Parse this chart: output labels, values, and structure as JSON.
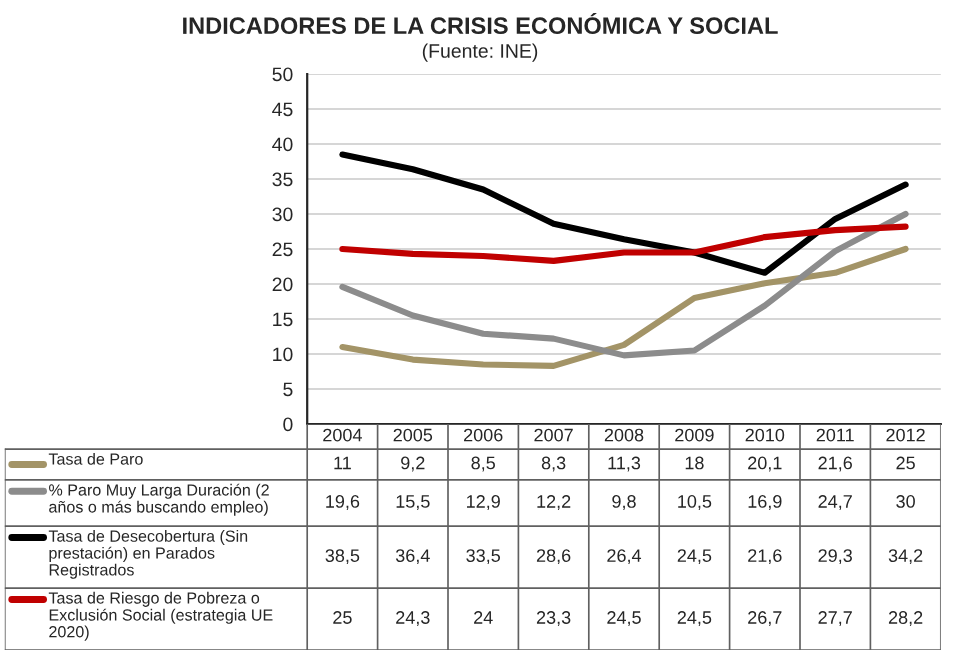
{
  "chart_data": {
    "type": "line",
    "title": "INDICADORES DE LA CRISIS ECONÓMICA Y SOCIAL",
    "subtitle": "(Fuente: INE)",
    "categories": [
      "2004",
      "2005",
      "2006",
      "2007",
      "2008",
      "2009",
      "2010",
      "2011",
      "2012"
    ],
    "ylim": [
      0,
      50
    ],
    "yticks": [
      0,
      5,
      10,
      15,
      20,
      25,
      30,
      35,
      40,
      45,
      50
    ],
    "grid": "y",
    "legend": "bottom left",
    "marker": "none",
    "line_style": "solid",
    "series": [
      {
        "name": "Tasa de Paro",
        "color": "#a39467",
        "values": [
          11,
          9.2,
          8.5,
          8.3,
          11.3,
          18,
          20.1,
          21.6,
          25
        ],
        "value_labels": [
          "11",
          "9,2",
          "8,5",
          "8,3",
          "11,3",
          "18",
          "20,1",
          "21,6",
          "25"
        ]
      },
      {
        "name": "% Paro Muy Larga Duración (2\naños o más buscando empleo)",
        "color": "#8c8c8c",
        "values": [
          19.6,
          15.5,
          12.9,
          12.2,
          9.8,
          10.5,
          16.9,
          24.7,
          30
        ],
        "value_labels": [
          "19,6",
          "15,5",
          "12,9",
          "12,2",
          "9,8",
          "10,5",
          "16,9",
          "24,7",
          "30"
        ]
      },
      {
        "name": "Tasa de Desecobertura (Sin\nprestación) en Parados\nRegistrados",
        "color": "#000000",
        "values": [
          38.5,
          36.4,
          33.5,
          28.6,
          26.4,
          24.5,
          21.6,
          29.3,
          34.2
        ],
        "value_labels": [
          "38,5",
          "36,4",
          "33,5",
          "28,6",
          "26,4",
          "24,5",
          "21,6",
          "29,3",
          "34,2"
        ]
      },
      {
        "name": "Tasa de Riesgo de Pobreza o\nExclusión Social (estrategia UE\n2020)",
        "color": "#c00000",
        "values": [
          25,
          24.3,
          24,
          23.3,
          24.5,
          24.5,
          26.7,
          27.7,
          28.2
        ],
        "value_labels": [
          "25",
          "24,3",
          "24",
          "23,3",
          "24,5",
          "24,5",
          "26,7",
          "27,7",
          "28,2"
        ]
      }
    ]
  }
}
